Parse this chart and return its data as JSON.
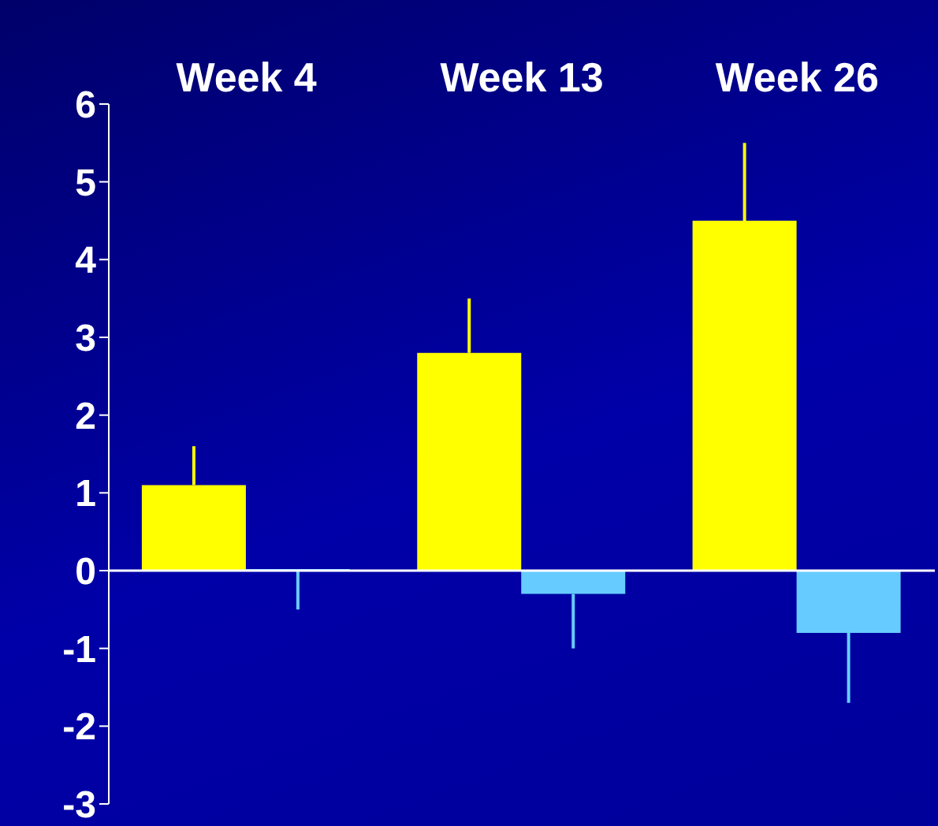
{
  "chart_data": {
    "type": "bar",
    "categories": [
      "Week 4",
      "Week 13",
      "Week 26"
    ],
    "series": [
      {
        "color": "#ffff00",
        "values": [
          1.1,
          2.8,
          4.5
        ],
        "errors": [
          [
            1.1,
            1.6
          ],
          [
            2.8,
            3.5
          ],
          [
            4.5,
            5.5
          ]
        ]
      },
      {
        "color": "#66ccff",
        "values": [
          0,
          -0.3,
          -0.8
        ],
        "errors": [
          [
            -0.5,
            0
          ],
          [
            -1.0,
            -0.3
          ],
          [
            -1.7,
            -0.8
          ]
        ]
      }
    ],
    "ylim": [
      -3,
      6
    ],
    "yticks": [
      -3,
      -2,
      -1,
      0,
      1,
      2,
      3,
      4,
      5,
      6
    ],
    "ref_lines": [
      {
        "axis": "y",
        "value": 0,
        "color": "#ffffff"
      }
    ]
  }
}
